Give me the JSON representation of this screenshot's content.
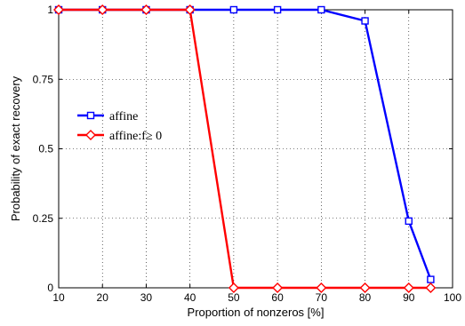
{
  "chart_data": {
    "type": "line",
    "title": "",
    "xlabel": "Proportion of nonzeros [%]",
    "ylabel": "Probability of exact recovery",
    "xlim": [
      10,
      100
    ],
    "ylim": [
      0,
      1
    ],
    "xticks": [
      10,
      20,
      30,
      40,
      50,
      60,
      70,
      80,
      90,
      100
    ],
    "yticks": [
      0,
      0.25,
      0.5,
      0.75,
      1
    ],
    "ytick_labels": [
      "0",
      "0.25",
      "0.5",
      "0.75",
      "1"
    ],
    "grid": true,
    "legend_position": "left-middle",
    "x": [
      10,
      20,
      30,
      40,
      50,
      60,
      70,
      80,
      90,
      95
    ],
    "series": [
      {
        "name": "affine",
        "color": "#0000ff",
        "marker": "square",
        "values": [
          1,
          1,
          1,
          1,
          1,
          1,
          1,
          0.96,
          0.24,
          0.03
        ]
      },
      {
        "name": "affine:f≥ 0",
        "color": "#ff0000",
        "marker": "diamond",
        "values": [
          1,
          1,
          1,
          1,
          0,
          0,
          0,
          0,
          0,
          0
        ]
      }
    ]
  }
}
